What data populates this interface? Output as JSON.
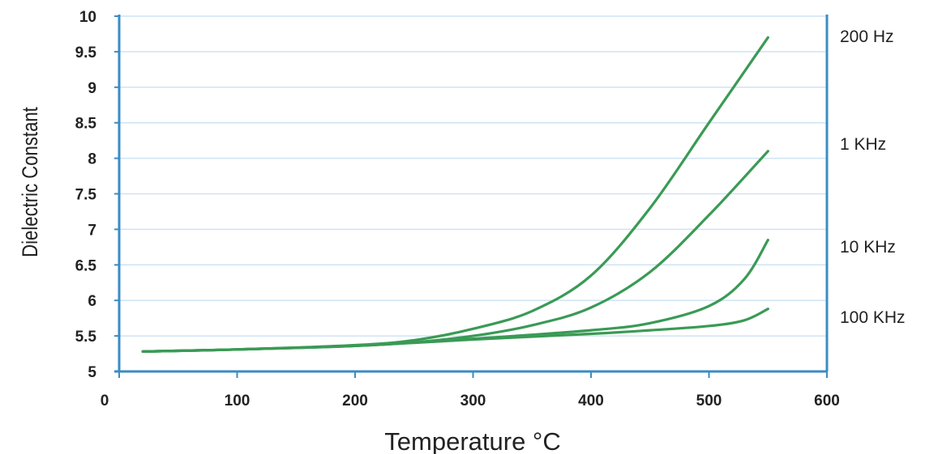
{
  "chart_data": {
    "type": "line",
    "xlabel": "Temperature °C",
    "ylabel": "Dielectric Constant",
    "xlim": [
      0,
      600
    ],
    "ylim": [
      5,
      10
    ],
    "x_ticks": [
      "0",
      "100",
      "200",
      "300",
      "400",
      "500",
      "600"
    ],
    "y_ticks": [
      "5",
      "5.5",
      "6",
      "6.5",
      "7",
      "7.5",
      "8",
      "8.5",
      "9",
      "9.5",
      "10"
    ],
    "grid": true,
    "colors": {
      "line": "#3a9a55",
      "axis": "#3a8cc4",
      "grid": "#cfe3f3"
    },
    "series": [
      {
        "name": "200 Hz",
        "x": [
          20,
          100,
          200,
          250,
          300,
          350,
          400,
          450,
          500,
          550
        ],
        "y": [
          5.28,
          5.31,
          5.37,
          5.44,
          5.6,
          5.85,
          6.35,
          7.3,
          8.5,
          9.7
        ]
      },
      {
        "name": "1 KHz",
        "x": [
          20,
          100,
          200,
          250,
          300,
          350,
          400,
          450,
          500,
          550
        ],
        "y": [
          5.28,
          5.31,
          5.36,
          5.41,
          5.5,
          5.65,
          5.9,
          6.4,
          7.2,
          8.1
        ]
      },
      {
        "name": "10 KHz",
        "x": [
          20,
          100,
          200,
          300,
          400,
          450,
          500,
          530,
          550
        ],
        "y": [
          5.28,
          5.31,
          5.36,
          5.46,
          5.58,
          5.68,
          5.92,
          6.3,
          6.85
        ]
      },
      {
        "name": "100 KHz",
        "x": [
          20,
          100,
          200,
          300,
          400,
          450,
          500,
          530,
          550
        ],
        "y": [
          5.28,
          5.31,
          5.36,
          5.45,
          5.53,
          5.58,
          5.64,
          5.72,
          5.88
        ]
      }
    ]
  }
}
